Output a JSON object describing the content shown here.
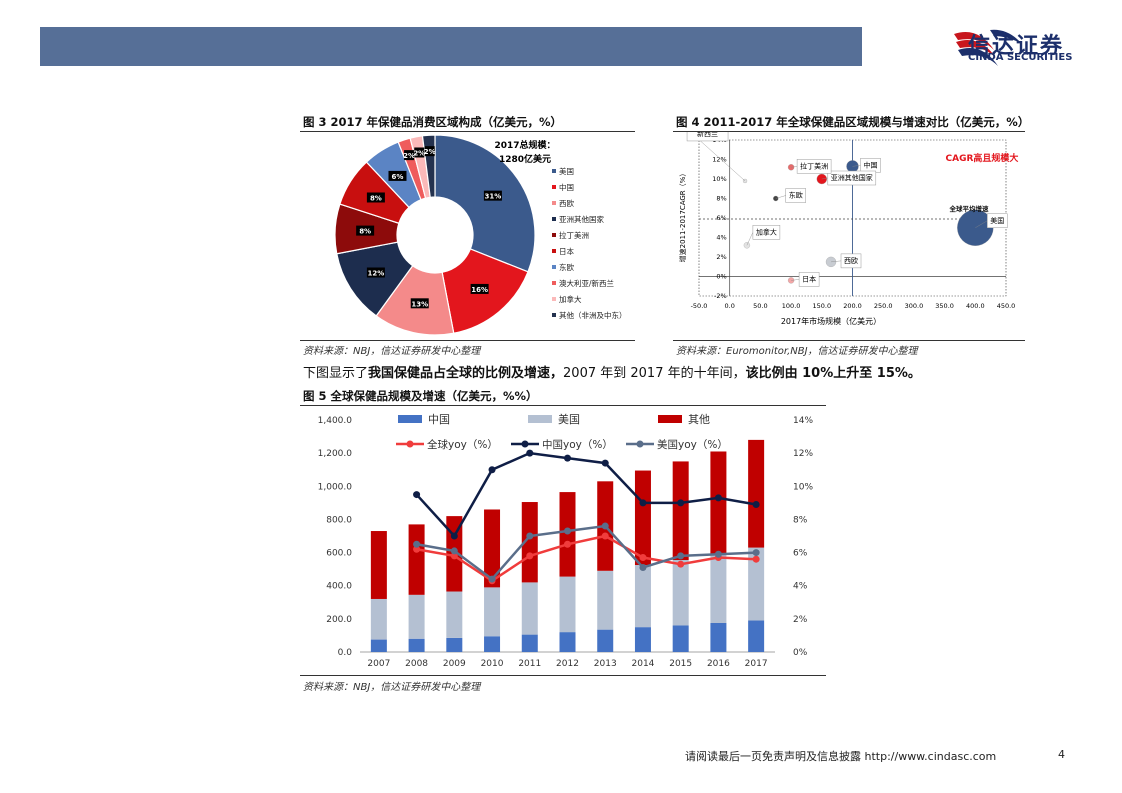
{
  "header": {
    "logo_cn": "信达证券",
    "logo_en": "CINDA SECURITIES"
  },
  "fig3": {
    "title": "图 3 2017 年保健品消费区域构成（亿美元，%）",
    "total_label_1": "2017总规模：",
    "total_label_2": "1280亿美元",
    "source": "资料来源：NBJ，信达证券研发中心整理",
    "chart_data": {
      "type": "pie",
      "categories": [
        "美国",
        "中国",
        "西欧",
        "亚洲其他国家",
        "拉丁美洲",
        "日本",
        "东欧",
        "澳大利亚/新西兰",
        "加拿大",
        "其他（非洲及中东）"
      ],
      "values": [
        31,
        16,
        13,
        12,
        8,
        8,
        6,
        2,
        2,
        2
      ],
      "labels": [
        "31%",
        "16%",
        "13%",
        "12%",
        "8%",
        "8%",
        "6%",
        "2%",
        "2%",
        "2%"
      ],
      "colors": [
        "#3b5a8c",
        "#e3161d",
        "#f48a8a",
        "#1d2d4e",
        "#8d0b0b",
        "#c80f0f",
        "#5b84c4",
        "#ef5c5c",
        "#fbb9b9",
        "#24324f"
      ],
      "legend_position": "right"
    }
  },
  "fig4": {
    "title": "图 4 2011-2017 年全球保健品区域规模与增速对比（亿美元，%）",
    "source": "资料来源：Euromonitor,NBJ，信达证券研发中心整理",
    "annotation_red": "CAGR高且规模大",
    "annotation_avg": "全球平均增速",
    "chart_data": {
      "type": "scatter",
      "xlabel": "2017年市场规模（亿美元）",
      "ylabel": "增速2011-2017CAGR（%）",
      "xlim": [
        -50,
        450
      ],
      "ylim": [
        -2,
        14
      ],
      "x_ticks": [
        "-50.0",
        "0.0",
        "50.0",
        "100.0",
        "150.0",
        "200.0",
        "250.0",
        "300.0",
        "350.0",
        "400.0",
        "450.0"
      ],
      "y_ticks": [
        "-2%",
        "0%",
        "2%",
        "4%",
        "6%",
        "8%",
        "10%",
        "12%",
        "14%"
      ],
      "reference_lines": {
        "x": 200,
        "y": 5.9
      },
      "points": [
        {
          "name": "美国",
          "x": 400,
          "y": 5.0,
          "color": "#3b5a8c"
        },
        {
          "name": "中国",
          "x": 200,
          "y": 11.3,
          "color": "#3b5a8c"
        },
        {
          "name": "亚洲其他国家",
          "x": 150,
          "y": 10.0,
          "color": "#e3161d"
        },
        {
          "name": "拉丁美洲",
          "x": 100,
          "y": 11.2,
          "color": "#e86a6a"
        },
        {
          "name": "东欧",
          "x": 75,
          "y": 8.0,
          "color": "#444444"
        },
        {
          "name": "西欧",
          "x": 165,
          "y": 1.5,
          "color": "#c8ccd2"
        },
        {
          "name": "日本",
          "x": 100,
          "y": -0.4,
          "color": "#f4a6a6"
        },
        {
          "name": "加拿大",
          "x": 28,
          "y": 3.2,
          "color": "#e3e3e3"
        },
        {
          "name": "澳大利亚/新西兰",
          "x": 25,
          "y": 9.8,
          "color": "#e3e3e3"
        }
      ],
      "callout_labels": [
        "美国",
        "中国",
        "亚洲其他国家",
        "拉丁美洲",
        "东欧",
        "西欧",
        "日本",
        "加拿大",
        "澳大利亚/\n新西兰"
      ]
    }
  },
  "body_text": {
    "prefix": "下图显示了",
    "bold": "我国保健品占全球的比例及增速，",
    "mid": "2007 年到 2017 年的十年间，",
    "bold2": "该比例由 10%上升至 15%。"
  },
  "fig5": {
    "title": "图 5 全球保健品规模及增速（亿美元，%%）",
    "source": "资料来源：NBJ，信达证券研发中心整理",
    "chart_data": {
      "type": "bar",
      "stacked": true,
      "categories": [
        "2007",
        "2008",
        "2009",
        "2010",
        "2011",
        "2012",
        "2013",
        "2014",
        "2015",
        "2016",
        "2017"
      ],
      "ylim": [
        0,
        1400
      ],
      "y_ticks": [
        "0.0",
        "200.0",
        "400.0",
        "600.0",
        "800.0",
        "1,000.0",
        "1,200.0",
        "1,400.0"
      ],
      "y2lim": [
        0,
        14
      ],
      "y2_ticks": [
        "0%",
        "2%",
        "4%",
        "6%",
        "8%",
        "10%",
        "12%",
        "14%"
      ],
      "series": [
        {
          "name": "中国",
          "kind": "bar",
          "color": "#4472c4",
          "values": [
            75,
            80,
            85,
            95,
            105,
            120,
            135,
            150,
            160,
            175,
            190
          ]
        },
        {
          "name": "美国",
          "kind": "bar",
          "color": "#b4c0d2",
          "values": [
            245,
            265,
            280,
            295,
            315,
            335,
            355,
            375,
            395,
            410,
            440
          ]
        },
        {
          "name": "其他",
          "kind": "bar",
          "color": "#c00000",
          "values": [
            410,
            425,
            455,
            470,
            485,
            510,
            540,
            570,
            595,
            625,
            650
          ]
        },
        {
          "name": "全球yoy（%）",
          "kind": "line",
          "axis": "right",
          "color": "#f03c3c",
          "values": [
            null,
            6.2,
            5.8,
            4.3,
            5.8,
            6.5,
            7.0,
            5.7,
            5.3,
            5.7,
            5.6
          ]
        },
        {
          "name": "中国yoy（%）",
          "kind": "line",
          "axis": "right",
          "color": "#0f1e46",
          "values": [
            null,
            9.5,
            7.0,
            11.0,
            12.0,
            11.7,
            11.4,
            9.0,
            9.0,
            9.3,
            8.9
          ]
        },
        {
          "name": "美国yoy（%）",
          "kind": "line",
          "axis": "right",
          "color": "#5a6e8a",
          "values": [
            null,
            6.5,
            6.1,
            4.4,
            7.0,
            7.3,
            7.6,
            5.1,
            5.8,
            5.9,
            6.0
          ]
        }
      ]
    }
  },
  "footer": {
    "text": "请阅读最后一页免责声明及信息披露 http://www.cindasc.com",
    "page": "4"
  }
}
